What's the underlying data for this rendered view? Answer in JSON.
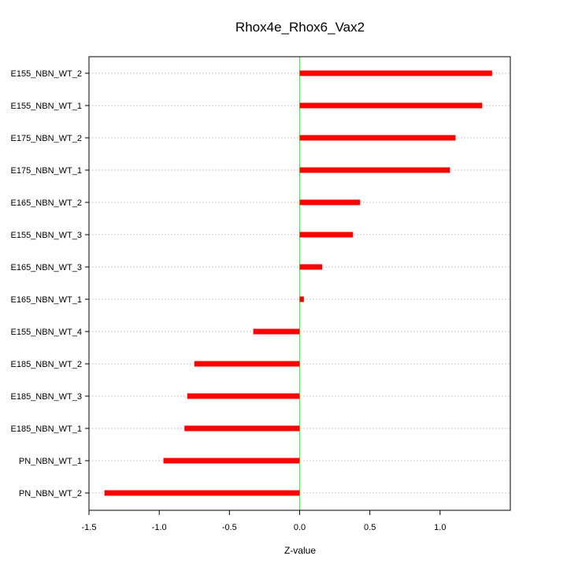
{
  "chart_data": {
    "type": "bar",
    "orientation": "horizontal",
    "title": "Rhox4e_Rhox6_Vax2",
    "xlabel": "Z-value",
    "ylabel": "",
    "xlim": [
      -1.5,
      1.5
    ],
    "xticks": [
      -1.5,
      -1.0,
      -0.5,
      0.0,
      0.5,
      1.0
    ],
    "xtick_labels": [
      "-1.5",
      "-1.0",
      "-0.5",
      "0.0",
      "0.5",
      "1.0"
    ],
    "grid": "horizontal dotted",
    "reference_line": {
      "x": 0,
      "color": "#66dd66"
    },
    "bar_color": "#ff0000",
    "categories": [
      "E155_NBN_WT_2",
      "E155_NBN_WT_1",
      "E175_NBN_WT_2",
      "E175_NBN_WT_1",
      "E165_NBN_WT_2",
      "E155_NBN_WT_3",
      "E165_NBN_WT_3",
      "E165_NBN_WT_1",
      "E155_NBN_WT_4",
      "E185_NBN_WT_2",
      "E185_NBN_WT_3",
      "E185_NBN_WT_1",
      "PN_NBN_WT_1",
      "PN_NBN_WT_2"
    ],
    "values": [
      1.37,
      1.3,
      1.11,
      1.07,
      0.43,
      0.38,
      0.16,
      0.03,
      -0.33,
      -0.75,
      -0.8,
      -0.82,
      -0.97,
      -1.39
    ]
  }
}
